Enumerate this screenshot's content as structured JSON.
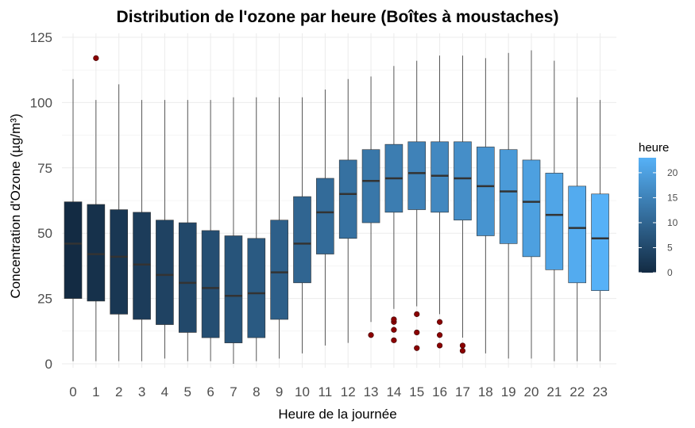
{
  "chart_data": {
    "type": "boxplot",
    "title": "Distribution de l'ozone par heure (Boîtes à moustaches)",
    "xlabel": "Heure de la journée",
    "ylabel": "Concentration d'Ozone (µg/m³)",
    "ylim": [
      0,
      125
    ],
    "yticks": [
      0,
      25,
      50,
      75,
      100,
      125
    ],
    "grid": true,
    "legend": {
      "title": "heure",
      "placement": "right",
      "type": "colorbar",
      "range": [
        0,
        23
      ],
      "ticks": [
        0,
        5,
        10,
        15,
        20
      ],
      "color_low": "#132b43",
      "color_high": "#56b1f7"
    },
    "outlier_color": "#8b0000",
    "categories": [
      "0",
      "1",
      "2",
      "3",
      "4",
      "5",
      "6",
      "7",
      "8",
      "9",
      "10",
      "11",
      "12",
      "13",
      "14",
      "15",
      "16",
      "17",
      "18",
      "19",
      "20",
      "21",
      "22",
      "23"
    ],
    "boxes": [
      {
        "hour": 0,
        "whisker_low": 1,
        "q1": 25,
        "median": 46,
        "q3": 62,
        "whisker_high": 109,
        "outliers": []
      },
      {
        "hour": 1,
        "whisker_low": 1,
        "q1": 24,
        "median": 42,
        "q3": 61,
        "whisker_high": 101,
        "outliers": [
          117
        ]
      },
      {
        "hour": 2,
        "whisker_low": 1,
        "q1": 19,
        "median": 41,
        "q3": 59,
        "whisker_high": 107,
        "outliers": []
      },
      {
        "hour": 3,
        "whisker_low": 1,
        "q1": 17,
        "median": 38,
        "q3": 58,
        "whisker_high": 101,
        "outliers": []
      },
      {
        "hour": 4,
        "whisker_low": 2,
        "q1": 15,
        "median": 34,
        "q3": 55,
        "whisker_high": 101,
        "outliers": []
      },
      {
        "hour": 5,
        "whisker_low": 1,
        "q1": 12,
        "median": 31,
        "q3": 54,
        "whisker_high": 101,
        "outliers": []
      },
      {
        "hour": 6,
        "whisker_low": 1,
        "q1": 10,
        "median": 29,
        "q3": 51,
        "whisker_high": 101,
        "outliers": []
      },
      {
        "hour": 7,
        "whisker_low": 0,
        "q1": 8,
        "median": 26,
        "q3": 49,
        "whisker_high": 102,
        "outliers": []
      },
      {
        "hour": 8,
        "whisker_low": 1,
        "q1": 10,
        "median": 27,
        "q3": 48,
        "whisker_high": 102,
        "outliers": []
      },
      {
        "hour": 9,
        "whisker_low": 2,
        "q1": 17,
        "median": 35,
        "q3": 55,
        "whisker_high": 102,
        "outliers": []
      },
      {
        "hour": 10,
        "whisker_low": 4,
        "q1": 31,
        "median": 46,
        "q3": 64,
        "whisker_high": 102,
        "outliers": []
      },
      {
        "hour": 11,
        "whisker_low": 7,
        "q1": 42,
        "median": 58,
        "q3": 71,
        "whisker_high": 105,
        "outliers": []
      },
      {
        "hour": 12,
        "whisker_low": 8,
        "q1": 48,
        "median": 65,
        "q3": 78,
        "whisker_high": 109,
        "outliers": []
      },
      {
        "hour": 13,
        "whisker_low": 16,
        "q1": 54,
        "median": 70,
        "q3": 82,
        "whisker_high": 110,
        "outliers": [
          11
        ]
      },
      {
        "hour": 14,
        "whisker_low": 21,
        "q1": 58,
        "median": 71,
        "q3": 84,
        "whisker_high": 114,
        "outliers": [
          9,
          13,
          16,
          17
        ]
      },
      {
        "hour": 15,
        "whisker_low": 22,
        "q1": 59,
        "median": 73,
        "q3": 85,
        "whisker_high": 116,
        "outliers": [
          6,
          12,
          19
        ]
      },
      {
        "hour": 16,
        "whisker_low": 19,
        "q1": 58,
        "median": 72,
        "q3": 85,
        "whisker_high": 118,
        "outliers": [
          7,
          11,
          16
        ]
      },
      {
        "hour": 17,
        "whisker_low": 10,
        "q1": 55,
        "median": 71,
        "q3": 85,
        "whisker_high": 118,
        "outliers": [
          5,
          7
        ]
      },
      {
        "hour": 18,
        "whisker_low": 4,
        "q1": 49,
        "median": 68,
        "q3": 83,
        "whisker_high": 117,
        "outliers": []
      },
      {
        "hour": 19,
        "whisker_low": 2,
        "q1": 46,
        "median": 66,
        "q3": 82,
        "whisker_high": 119,
        "outliers": []
      },
      {
        "hour": 20,
        "whisker_low": 2,
        "q1": 41,
        "median": 62,
        "q3": 78,
        "whisker_high": 120,
        "outliers": []
      },
      {
        "hour": 21,
        "whisker_low": 1,
        "q1": 36,
        "median": 57,
        "q3": 73,
        "whisker_high": 116,
        "outliers": []
      },
      {
        "hour": 22,
        "whisker_low": 1,
        "q1": 31,
        "median": 52,
        "q3": 68,
        "whisker_high": 102,
        "outliers": []
      },
      {
        "hour": 23,
        "whisker_low": 1,
        "q1": 28,
        "median": 48,
        "q3": 65,
        "whisker_high": 101,
        "outliers": []
      }
    ]
  }
}
